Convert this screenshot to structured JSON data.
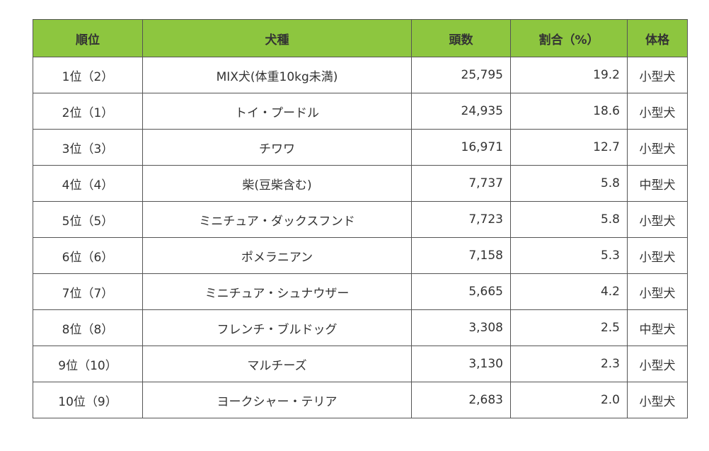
{
  "table": {
    "headers": {
      "rank": "順位",
      "breed": "犬種",
      "count": "頭数",
      "ratio": "割合（%）",
      "size": "体格"
    },
    "rows": [
      {
        "rank": "1位（2）",
        "breed": "MIX犬(体重10kg未満)",
        "count": "25,795",
        "ratio": "19.2",
        "size": "小型犬"
      },
      {
        "rank": "2位（1）",
        "breed": "トイ・プードル",
        "count": "24,935",
        "ratio": "18.6",
        "size": "小型犬"
      },
      {
        "rank": "3位（3）",
        "breed": "チワワ",
        "count": "16,971",
        "ratio": "12.7",
        "size": "小型犬"
      },
      {
        "rank": "4位（4）",
        "breed": "柴(豆柴含む)",
        "count": "7,737",
        "ratio": "5.8",
        "size": "中型犬"
      },
      {
        "rank": "5位（5）",
        "breed": "ミニチュア・ダックスフンド",
        "count": "7,723",
        "ratio": "5.8",
        "size": "小型犬"
      },
      {
        "rank": "6位（6）",
        "breed": "ポメラニアン",
        "count": "7,158",
        "ratio": "5.3",
        "size": "小型犬"
      },
      {
        "rank": "7位（7）",
        "breed": "ミニチュア・シュナウザー",
        "count": "5,665",
        "ratio": "4.2",
        "size": "小型犬"
      },
      {
        "rank": "8位（8）",
        "breed": "フレンチ・ブルドッグ",
        "count": "3,308",
        "ratio": "2.5",
        "size": "中型犬"
      },
      {
        "rank": "9位（10）",
        "breed": "マルチーズ",
        "count": "3,130",
        "ratio": "2.3",
        "size": "小型犬"
      },
      {
        "rank": "10位（9）",
        "breed": "ヨークシャー・テリア",
        "count": "2,683",
        "ratio": "2.0",
        "size": "小型犬"
      }
    ]
  },
  "colors": {
    "header_background": "#8dc63f",
    "border": "#555555",
    "text": "#333333"
  }
}
